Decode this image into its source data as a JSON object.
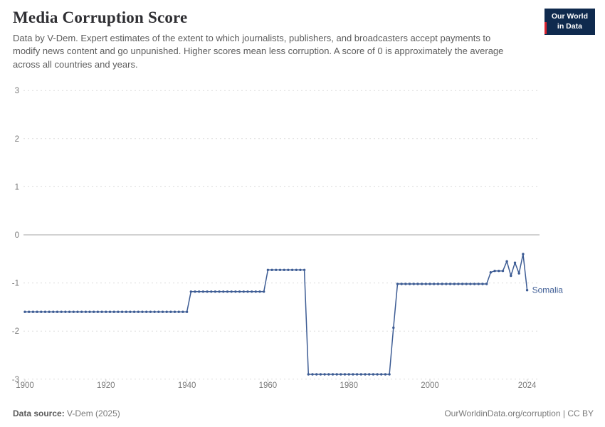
{
  "header": {
    "title": "Media Corruption Score",
    "subtitle": "Data by V-Dem. Expert estimates of the extent to which journalists, publishers, and broadcasters accept payments to modify news content and go unpunished. Higher scores mean less corruption. A score of 0 is approximately the average across all countries and years.",
    "logo_line1": "Our World",
    "logo_line2": "in Data"
  },
  "footer": {
    "source_label": "Data source:",
    "source_value": "V-Dem (2025)",
    "credit": "OurWorldinData.org/corruption | CC BY"
  },
  "chart_data": {
    "type": "line",
    "title": "Media Corruption Score",
    "xlabel": "",
    "ylabel": "",
    "x_ticks": [
      1900,
      1920,
      1940,
      1960,
      1980,
      2000,
      2024
    ],
    "y_ticks": [
      3,
      2,
      1,
      0,
      -1,
      -2,
      -3
    ],
    "xlim": [
      1900,
      2024
    ],
    "ylim": [
      -3,
      3
    ],
    "grid": "dashed-horizontal",
    "zero_line": true,
    "colors": {
      "line": "#3d5c94",
      "grid": "#dcdcdc",
      "zero_line": "#a6a6a6",
      "tick_label": "#7a7a7a"
    },
    "series": [
      {
        "name": "Somalia",
        "color": "#3d5c94",
        "segments": [
          {
            "from": 1900,
            "to": 1940,
            "value": -1.6
          },
          {
            "from": 1941,
            "to": 1959,
            "value": -1.18
          },
          {
            "from": 1960,
            "to": 1969,
            "value": -0.73
          },
          {
            "from": 1970,
            "to": 1990,
            "value": -2.9
          },
          {
            "from": 1991,
            "to": 1991,
            "value": -1.93
          },
          {
            "from": 1992,
            "to": 2014,
            "value": -1.02
          },
          {
            "from": 2015,
            "to": 2015,
            "value": -0.78
          },
          {
            "from": 2016,
            "to": 2018,
            "value": -0.75
          },
          {
            "from": 2019,
            "to": 2019,
            "value": -0.55
          },
          {
            "from": 2020,
            "to": 2020,
            "value": -0.85
          },
          {
            "from": 2021,
            "to": 2021,
            "value": -0.58
          },
          {
            "from": 2022,
            "to": 2022,
            "value": -0.8
          },
          {
            "from": 2023,
            "to": 2023,
            "value": -0.4
          },
          {
            "from": 2024,
            "to": 2024,
            "value": -1.15
          }
        ]
      }
    ]
  }
}
